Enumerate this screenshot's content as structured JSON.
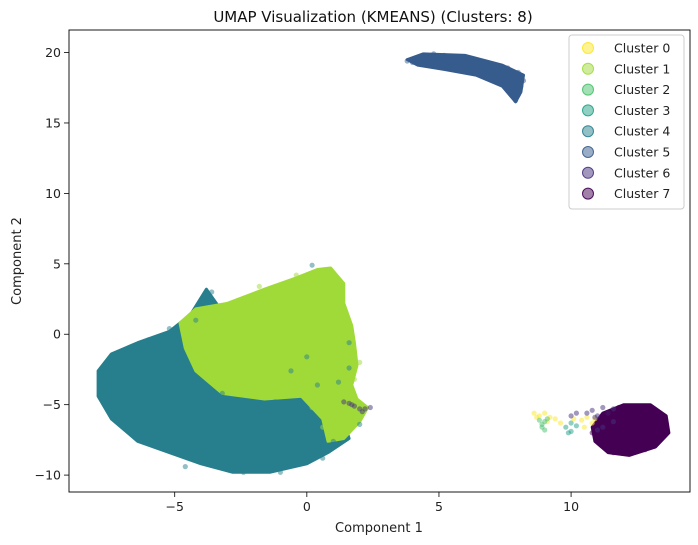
{
  "chart_data": {
    "type": "scatter",
    "title": "UMAP Visualization (KMEANS)  (Clusters: 8)",
    "xlabel": "Component 1",
    "ylabel": "Component 2",
    "xlim": [
      -9,
      14.5
    ],
    "ylim": [
      -11.2,
      21.6
    ],
    "xticks": [
      -5,
      0,
      5,
      10
    ],
    "yticks": [
      -10,
      -5,
      0,
      5,
      10,
      15,
      20
    ],
    "grid": false,
    "legend": "top-right",
    "point_alpha": 0.5,
    "series": [
      {
        "name": "Cluster 0",
        "color": "#fde725",
        "points": [
          [
            8.6,
            -5.6
          ],
          [
            8.8,
            -5.8
          ],
          [
            9.0,
            -5.6
          ],
          [
            9.2,
            -5.9
          ],
          [
            9.4,
            -6.0
          ],
          [
            8.7,
            -5.9
          ],
          [
            9.1,
            -6.2
          ],
          [
            10.4,
            -6.1
          ],
          [
            10.6,
            -5.9
          ],
          [
            10.8,
            -6.3
          ],
          [
            10.5,
            -6.6
          ],
          [
            9.6,
            -6.3
          ],
          [
            10.1,
            -6.0
          ],
          [
            10.9,
            -6.0
          ]
        ]
      },
      {
        "name": "Cluster 1",
        "color": "#a0da39",
        "points": [
          [
            -4.6,
            0.4
          ],
          [
            -3.8,
            0.0
          ],
          [
            -2.6,
            0.2
          ],
          [
            -1.4,
            0.0
          ],
          [
            -0.2,
            0.2
          ],
          [
            1.0,
            0.0
          ],
          [
            1.6,
            -0.4
          ],
          [
            -4.2,
            -1.0
          ],
          [
            -3.0,
            -1.2
          ],
          [
            -1.8,
            -1.0
          ],
          [
            -0.6,
            -1.2
          ],
          [
            0.6,
            -1.0
          ],
          [
            1.8,
            -1.2
          ],
          [
            -3.6,
            -2.2
          ],
          [
            -2.4,
            -2.0
          ],
          [
            -1.2,
            -2.2
          ],
          [
            0.0,
            -2.0
          ],
          [
            1.2,
            -2.2
          ],
          [
            -3.0,
            -3.2
          ],
          [
            -1.8,
            -3.0
          ],
          [
            -0.6,
            -3.2
          ],
          [
            0.6,
            -3.0
          ],
          [
            1.8,
            -3.2
          ],
          [
            -0.2,
            -4.2
          ],
          [
            1.0,
            -4.0
          ],
          [
            1.8,
            -4.5
          ],
          [
            -3.2,
            1.2
          ],
          [
            -2.0,
            1.4
          ],
          [
            -0.8,
            1.2
          ],
          [
            0.4,
            1.4
          ],
          [
            1.2,
            1.0
          ],
          [
            -2.6,
            2.4
          ],
          [
            -1.4,
            2.2
          ],
          [
            -0.2,
            2.4
          ],
          [
            0.8,
            2.2
          ],
          [
            -1.8,
            3.4
          ],
          [
            -0.8,
            3.2
          ],
          [
            0.2,
            3.4
          ],
          [
            0.8,
            3.6
          ],
          [
            -0.4,
            4.2
          ],
          [
            0.4,
            4.4
          ],
          [
            0.9,
            4.6
          ],
          [
            0.2,
            -5.2
          ],
          [
            1.0,
            -5.6
          ],
          [
            1.6,
            -6.2
          ],
          [
            2.0,
            -5.6
          ],
          [
            0.6,
            -6.6
          ],
          [
            1.4,
            -6.6
          ],
          [
            0.8,
            -7.2
          ],
          [
            -4.0,
            -0.4
          ],
          [
            -3.4,
            -1.8
          ],
          [
            2.0,
            -2.0
          ],
          [
            1.6,
            -2.6
          ],
          [
            -2.2,
            -3.8
          ],
          [
            0.2,
            -0.6
          ]
        ]
      },
      {
        "name": "Cluster 2",
        "color": "#4ac16d",
        "points": [
          [
            8.8,
            -6.1
          ],
          [
            8.9,
            -6.4
          ],
          [
            9.0,
            -6.2
          ],
          [
            9.1,
            -6.0
          ],
          [
            8.9,
            -6.6
          ],
          [
            9.0,
            -6.8
          ]
        ]
      },
      {
        "name": "Cluster 3",
        "color": "#1fa187",
        "points": [
          [
            9.8,
            -6.6
          ],
          [
            10.0,
            -6.9
          ],
          [
            10.2,
            -6.5
          ],
          [
            10.0,
            -6.3
          ],
          [
            9.9,
            -7.0
          ]
        ]
      },
      {
        "name": "Cluster 4",
        "color": "#277f8e",
        "points": [
          [
            -7.8,
            -3.0
          ],
          [
            -7.6,
            -4.0
          ],
          [
            -7.2,
            -2.0
          ],
          [
            -7.0,
            -5.0
          ],
          [
            -6.6,
            -1.0
          ],
          [
            -6.4,
            -6.2
          ],
          [
            -6.0,
            -0.4
          ],
          [
            -5.8,
            -3.0
          ],
          [
            -5.6,
            -5.2
          ],
          [
            -5.4,
            -7.0
          ],
          [
            -5.0,
            -1.8
          ],
          [
            -5.0,
            -4.4
          ],
          [
            -4.8,
            -8.0
          ],
          [
            -4.6,
            -6.0
          ],
          [
            -4.4,
            -3.0
          ],
          [
            -4.2,
            -8.4
          ],
          [
            -4.0,
            -5.4
          ],
          [
            -3.8,
            -7.2
          ],
          [
            -3.6,
            -9.0
          ],
          [
            -3.4,
            -6.4
          ],
          [
            -3.0,
            -8.0
          ],
          [
            -2.8,
            -5.2
          ],
          [
            -2.6,
            -9.4
          ],
          [
            -2.4,
            -7.0
          ],
          [
            -2.0,
            -8.6
          ],
          [
            -1.8,
            -6.0
          ],
          [
            -1.4,
            -9.2
          ],
          [
            -1.2,
            -7.4
          ],
          [
            -0.8,
            -8.4
          ],
          [
            -0.4,
            -6.4
          ],
          [
            -0.2,
            -9.0
          ],
          [
            0.2,
            -7.6
          ],
          [
            0.6,
            -8.8
          ],
          [
            1.0,
            -7.6
          ],
          [
            -6.2,
            -2.2
          ],
          [
            -6.8,
            -3.4
          ],
          [
            -5.4,
            -0.8
          ],
          [
            -4.2,
            1.0
          ],
          [
            -3.8,
            2.4
          ],
          [
            -3.6,
            3.0
          ],
          [
            -5.2,
            0.4
          ],
          [
            -3.2,
            -4.2
          ],
          [
            -1.2,
            -4.8
          ],
          [
            -2.4,
            -9.8
          ],
          [
            -1.0,
            -9.8
          ],
          [
            -4.6,
            -9.4
          ],
          [
            -6.6,
            -6.8
          ],
          [
            -7.4,
            -5.6
          ],
          [
            0.4,
            -3.6
          ],
          [
            1.2,
            -3.4
          ],
          [
            1.6,
            -2.4
          ],
          [
            0.0,
            -1.6
          ],
          [
            -0.6,
            -2.6
          ],
          [
            1.6,
            -0.6
          ],
          [
            0.2,
            4.9
          ],
          [
            2.0,
            -6.4
          ]
        ]
      },
      {
        "name": "Cluster 5",
        "color": "#365c8d",
        "points": [
          [
            3.8,
            19.4
          ],
          [
            4.0,
            19.3
          ],
          [
            4.2,
            19.5
          ],
          [
            4.4,
            19.8
          ],
          [
            4.6,
            19.6
          ],
          [
            4.8,
            19.9
          ],
          [
            5.0,
            19.5
          ],
          [
            5.2,
            19.8
          ],
          [
            5.4,
            19.4
          ],
          [
            5.6,
            19.7
          ],
          [
            5.8,
            19.3
          ],
          [
            6.0,
            19.6
          ],
          [
            6.2,
            19.2
          ],
          [
            6.4,
            19.5
          ],
          [
            6.6,
            19.0
          ],
          [
            6.8,
            19.3
          ],
          [
            7.0,
            18.8
          ],
          [
            7.2,
            19.0
          ],
          [
            7.4,
            18.6
          ],
          [
            7.6,
            18.9
          ],
          [
            7.8,
            18.3
          ],
          [
            8.0,
            18.6
          ],
          [
            8.1,
            17.6
          ],
          [
            8.0,
            17.0
          ],
          [
            7.9,
            16.6
          ],
          [
            8.2,
            18.0
          ],
          [
            4.6,
            19.2
          ],
          [
            5.4,
            19.0
          ],
          [
            6.2,
            18.7
          ],
          [
            7.0,
            18.4
          ]
        ]
      },
      {
        "name": "Cluster 6",
        "color": "#46327e",
        "points": [
          [
            1.4,
            -4.8
          ],
          [
            1.6,
            -4.9
          ],
          [
            1.8,
            -5.1
          ],
          [
            2.0,
            -5.3
          ],
          [
            2.2,
            -5.3
          ],
          [
            2.4,
            -5.2
          ],
          [
            1.7,
            -5.0
          ],
          [
            2.1,
            -5.5
          ],
          [
            10.8,
            -5.4
          ],
          [
            11.0,
            -5.8
          ],
          [
            11.2,
            -5.2
          ],
          [
            11.4,
            -5.6
          ],
          [
            10.6,
            -5.6
          ],
          [
            10.9,
            -5.9
          ],
          [
            11.6,
            -5.3
          ],
          [
            11.2,
            -6.6
          ],
          [
            11.6,
            -6.2
          ],
          [
            11.0,
            -6.8
          ],
          [
            10.2,
            -5.6
          ],
          [
            10.0,
            -5.8
          ]
        ]
      },
      {
        "name": "Cluster 7",
        "color": "#440154",
        "points": [
          [
            10.8,
            -7.0
          ],
          [
            11.0,
            -6.4
          ],
          [
            11.2,
            -7.6
          ],
          [
            11.4,
            -5.6
          ],
          [
            11.6,
            -6.6
          ],
          [
            11.8,
            -7.8
          ],
          [
            11.8,
            -5.2
          ],
          [
            12.0,
            -6.0
          ],
          [
            12.2,
            -7.2
          ],
          [
            12.4,
            -5.4
          ],
          [
            12.4,
            -8.2
          ],
          [
            12.6,
            -6.4
          ],
          [
            12.8,
            -7.6
          ],
          [
            12.9,
            -5.2
          ],
          [
            13.0,
            -6.8
          ],
          [
            13.2,
            -5.8
          ],
          [
            13.2,
            -7.8
          ],
          [
            13.4,
            -6.4
          ],
          [
            13.5,
            -7.2
          ],
          [
            11.6,
            -8.4
          ],
          [
            12.2,
            -8.4
          ],
          [
            12.8,
            -8.2
          ],
          [
            11.2,
            -6.0
          ],
          [
            12.0,
            -7.0
          ],
          [
            12.6,
            -5.6
          ]
        ]
      }
    ]
  }
}
